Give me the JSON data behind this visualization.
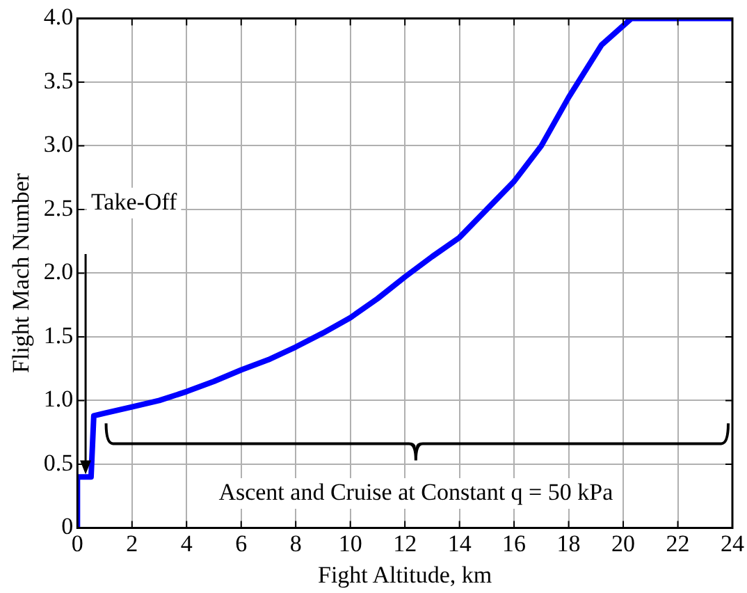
{
  "chart_data": {
    "type": "line",
    "xlabel": "Fight Altitude, km",
    "ylabel": "Flight Mach Number",
    "x": [
      0,
      0,
      0.5,
      0.6,
      1,
      2,
      3,
      4,
      5,
      6,
      7,
      8,
      9,
      10,
      11,
      12,
      13,
      14,
      15,
      16,
      17,
      18,
      19.2,
      20.3,
      24
    ],
    "series": [
      {
        "color": "#0000ff",
        "values": [
          0,
          0.4,
          0.4,
          0.88,
          0.9,
          0.95,
          1.0,
          1.07,
          1.15,
          1.24,
          1.32,
          1.42,
          1.53,
          1.65,
          1.8,
          1.97,
          2.13,
          2.28,
          2.5,
          2.72,
          3.0,
          3.38,
          3.79,
          4.0,
          4.0
        ]
      }
    ],
    "xlim": [
      0,
      24
    ],
    "xticks": [
      0,
      2,
      4,
      6,
      8,
      10,
      12,
      14,
      16,
      18,
      20,
      22,
      24
    ],
    "ylim": [
      0,
      4
    ],
    "yticks": [
      {
        "value": 0,
        "label": "0"
      },
      0.5,
      {
        "value": 1,
        "label": "1.0"
      },
      1.5,
      {
        "value": 2,
        "label": "2.0"
      },
      2.5,
      {
        "value": 3,
        "label": "3.0"
      },
      3.5,
      {
        "value": 4,
        "label": "4.0"
      }
    ],
    "grid": true,
    "legend": false,
    "marker": "none",
    "line_style": "solid",
    "annotations": [
      "Take-Off",
      "Ascent and Cruise at Constant q = 50 kPa"
    ]
  }
}
